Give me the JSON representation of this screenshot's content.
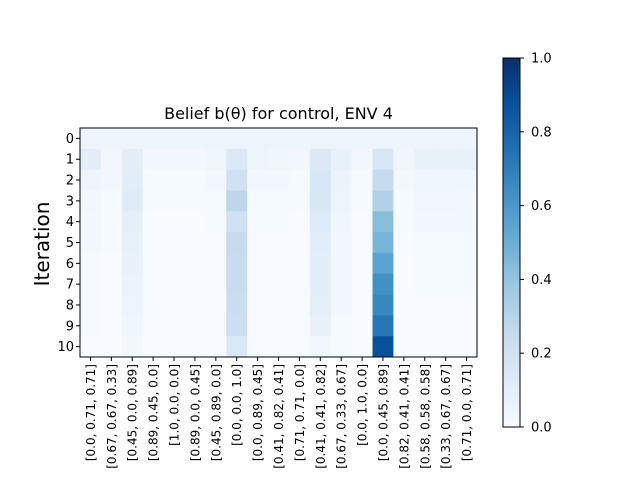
{
  "chart_data": {
    "type": "heatmap",
    "title": "Belief b(θ) for control, ENV 4",
    "ylabel": "Iteration",
    "xlabel": "",
    "rows": [
      "0",
      "1",
      "2",
      "3",
      "4",
      "5",
      "6",
      "7",
      "8",
      "9",
      "10"
    ],
    "columns": [
      "[0.0, 0.71, 0.71]",
      "[0.67, 0.67, 0.33]",
      "[0.45, 0.0, 0.89]",
      "[0.89, 0.45, 0.0]",
      "[1.0, 0.0, 0.0]",
      "[0.89, 0.0, 0.45]",
      "[0.45, 0.89, 0.0]",
      "[0.0, 0.0, 1.0]",
      "[0.0, 0.89, 0.45]",
      "[0.41, 0.82, 0.41]",
      "[0.71, 0.71, 0.0]",
      "[0.41, 0.41, 0.82]",
      "[0.67, 0.33, 0.67]",
      "[0.0, 1.0, 0.0]",
      "[0.0, 0.45, 0.89]",
      "[0.82, 0.41, 0.41]",
      "[0.58, 0.58, 0.58]",
      "[0.33, 0.67, 0.67]",
      "[0.71, 0.0, 0.71]"
    ],
    "values": [
      [
        0.05,
        0.05,
        0.05,
        0.05,
        0.05,
        0.05,
        0.05,
        0.05,
        0.05,
        0.05,
        0.05,
        0.05,
        0.05,
        0.05,
        0.05,
        0.05,
        0.05,
        0.05,
        0.05
      ],
      [
        0.1,
        0.03,
        0.1,
        0.02,
        0.02,
        0.02,
        0.04,
        0.14,
        0.05,
        0.04,
        0.03,
        0.14,
        0.08,
        0.03,
        0.16,
        0.04,
        0.08,
        0.08,
        0.08
      ],
      [
        0.05,
        0.02,
        0.11,
        0.01,
        0.01,
        0.01,
        0.02,
        0.2,
        0.02,
        0.02,
        0.01,
        0.16,
        0.06,
        0.01,
        0.25,
        0.02,
        0.04,
        0.04,
        0.04
      ],
      [
        0.03,
        0.01,
        0.12,
        0.01,
        0.01,
        0.01,
        0.01,
        0.28,
        0.01,
        0.01,
        0.01,
        0.15,
        0.05,
        0.01,
        0.32,
        0.01,
        0.03,
        0.03,
        0.02
      ],
      [
        0.02,
        0.01,
        0.09,
        0.0,
        0.0,
        0.0,
        0.01,
        0.2,
        0.01,
        0.01,
        0.0,
        0.13,
        0.04,
        0.0,
        0.43,
        0.01,
        0.02,
        0.02,
        0.02
      ],
      [
        0.02,
        0.01,
        0.08,
        0.0,
        0.0,
        0.0,
        0.0,
        0.25,
        0.0,
        0.0,
        0.0,
        0.11,
        0.03,
        0.0,
        0.47,
        0.0,
        0.01,
        0.01,
        0.01
      ],
      [
        0.01,
        0.0,
        0.07,
        0.0,
        0.0,
        0.0,
        0.0,
        0.24,
        0.0,
        0.0,
        0.0,
        0.1,
        0.03,
        0.0,
        0.55,
        0.0,
        0.01,
        0.01,
        0.01
      ],
      [
        0.01,
        0.0,
        0.06,
        0.0,
        0.0,
        0.0,
        0.0,
        0.24,
        0.0,
        0.0,
        0.0,
        0.1,
        0.02,
        0.0,
        0.63,
        0.0,
        0.01,
        0.01,
        0.01
      ],
      [
        0.01,
        0.0,
        0.05,
        0.0,
        0.0,
        0.0,
        0.0,
        0.23,
        0.0,
        0.0,
        0.0,
        0.09,
        0.02,
        0.0,
        0.66,
        0.0,
        0.0,
        0.0,
        0.0
      ],
      [
        0.01,
        0.0,
        0.04,
        0.0,
        0.0,
        0.0,
        0.0,
        0.22,
        0.0,
        0.0,
        0.0,
        0.07,
        0.01,
        0.0,
        0.73,
        0.0,
        0.0,
        0.0,
        0.0
      ],
      [
        0.0,
        0.0,
        0.03,
        0.0,
        0.0,
        0.0,
        0.0,
        0.14,
        0.0,
        0.0,
        0.0,
        0.03,
        0.01,
        0.0,
        0.88,
        0.0,
        0.0,
        0.0,
        0.0
      ]
    ],
    "colorbar": {
      "min": 0.0,
      "max": 1.0,
      "ticks": [
        "0.0",
        "0.2",
        "0.4",
        "0.6",
        "0.8",
        "1.0"
      ],
      "colormap": "Blues"
    }
  }
}
